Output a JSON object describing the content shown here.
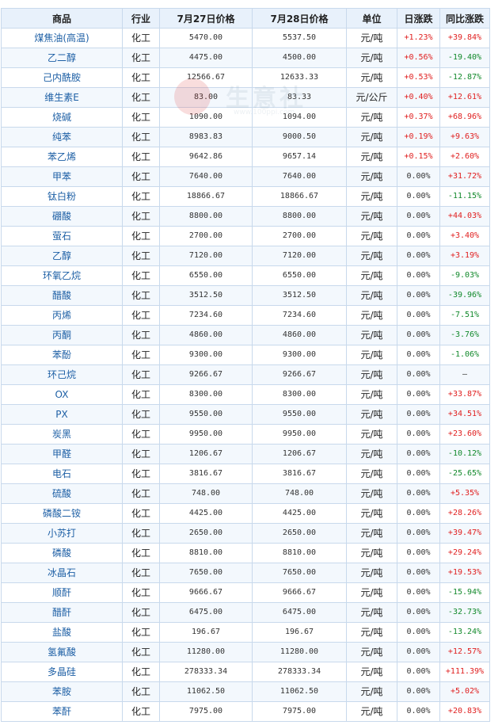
{
  "headers": [
    "商品",
    "行业",
    "7月27日价格",
    "7月28日价格",
    "单位",
    "日涨跌",
    "同比涨跌"
  ],
  "watermark": {
    "text": "生意社",
    "url": "www.100ppi.com"
  },
  "colors": {
    "up": "#e02020",
    "down": "#12892b",
    "link": "#1d5fa5",
    "header_bg": "#e8f1fb",
    "border": "#c8d9ec"
  },
  "rows": [
    {
      "name": "煤焦油(高温)",
      "industry": "化工",
      "p1": "5470.00",
      "p2": "5537.50",
      "unit": "元/吨",
      "day": "+1.23%",
      "day_dir": "up",
      "yoy": "+39.84%",
      "yoy_dir": "up"
    },
    {
      "name": "乙二醇",
      "industry": "化工",
      "p1": "4475.00",
      "p2": "4500.00",
      "unit": "元/吨",
      "day": "+0.56%",
      "day_dir": "up",
      "yoy": "-19.40%",
      "yoy_dir": "down"
    },
    {
      "name": "己内酰胺",
      "industry": "化工",
      "p1": "12566.67",
      "p2": "12633.33",
      "unit": "元/吨",
      "day": "+0.53%",
      "day_dir": "up",
      "yoy": "-12.87%",
      "yoy_dir": "down"
    },
    {
      "name": "维生素E",
      "industry": "化工",
      "p1": "83.00",
      "p2": "83.33",
      "unit": "元/公斤",
      "day": "+0.40%",
      "day_dir": "up",
      "yoy": "+12.61%",
      "yoy_dir": "up"
    },
    {
      "name": "烧碱",
      "industry": "化工",
      "p1": "1090.00",
      "p2": "1094.00",
      "unit": "元/吨",
      "day": "+0.37%",
      "day_dir": "up",
      "yoy": "+68.96%",
      "yoy_dir": "up"
    },
    {
      "name": "纯苯",
      "industry": "化工",
      "p1": "8983.83",
      "p2": "9000.50",
      "unit": "元/吨",
      "day": "+0.19%",
      "day_dir": "up",
      "yoy": "+9.63%",
      "yoy_dir": "up"
    },
    {
      "name": "苯乙烯",
      "industry": "化工",
      "p1": "9642.86",
      "p2": "9657.14",
      "unit": "元/吨",
      "day": "+0.15%",
      "day_dir": "up",
      "yoy": "+2.60%",
      "yoy_dir": "up"
    },
    {
      "name": "甲苯",
      "industry": "化工",
      "p1": "7640.00",
      "p2": "7640.00",
      "unit": "元/吨",
      "day": "0.00%",
      "day_dir": "flat",
      "yoy": "+31.72%",
      "yoy_dir": "up"
    },
    {
      "name": "钛白粉",
      "industry": "化工",
      "p1": "18866.67",
      "p2": "18866.67",
      "unit": "元/吨",
      "day": "0.00%",
      "day_dir": "flat",
      "yoy": "-11.15%",
      "yoy_dir": "down"
    },
    {
      "name": "硼酸",
      "industry": "化工",
      "p1": "8800.00",
      "p2": "8800.00",
      "unit": "元/吨",
      "day": "0.00%",
      "day_dir": "flat",
      "yoy": "+44.03%",
      "yoy_dir": "up"
    },
    {
      "name": "萤石",
      "industry": "化工",
      "p1": "2700.00",
      "p2": "2700.00",
      "unit": "元/吨",
      "day": "0.00%",
      "day_dir": "flat",
      "yoy": "+3.40%",
      "yoy_dir": "up"
    },
    {
      "name": "乙醇",
      "industry": "化工",
      "p1": "7120.00",
      "p2": "7120.00",
      "unit": "元/吨",
      "day": "0.00%",
      "day_dir": "flat",
      "yoy": "+3.19%",
      "yoy_dir": "up"
    },
    {
      "name": "环氧乙烷",
      "industry": "化工",
      "p1": "6550.00",
      "p2": "6550.00",
      "unit": "元/吨",
      "day": "0.00%",
      "day_dir": "flat",
      "yoy": "-9.03%",
      "yoy_dir": "down"
    },
    {
      "name": "醋酸",
      "industry": "化工",
      "p1": "3512.50",
      "p2": "3512.50",
      "unit": "元/吨",
      "day": "0.00%",
      "day_dir": "flat",
      "yoy": "-39.96%",
      "yoy_dir": "down"
    },
    {
      "name": "丙烯",
      "industry": "化工",
      "p1": "7234.60",
      "p2": "7234.60",
      "unit": "元/吨",
      "day": "0.00%",
      "day_dir": "flat",
      "yoy": "-7.51%",
      "yoy_dir": "down"
    },
    {
      "name": "丙酮",
      "industry": "化工",
      "p1": "4860.00",
      "p2": "4860.00",
      "unit": "元/吨",
      "day": "0.00%",
      "day_dir": "flat",
      "yoy": "-3.76%",
      "yoy_dir": "down"
    },
    {
      "name": "苯酚",
      "industry": "化工",
      "p1": "9300.00",
      "p2": "9300.00",
      "unit": "元/吨",
      "day": "0.00%",
      "day_dir": "flat",
      "yoy": "-1.06%",
      "yoy_dir": "down"
    },
    {
      "name": "环己烷",
      "industry": "化工",
      "p1": "9266.67",
      "p2": "9266.67",
      "unit": "元/吨",
      "day": "0.00%",
      "day_dir": "flat",
      "yoy": "—",
      "yoy_dir": "flat"
    },
    {
      "name": "OX",
      "industry": "化工",
      "p1": "8300.00",
      "p2": "8300.00",
      "unit": "元/吨",
      "day": "0.00%",
      "day_dir": "flat",
      "yoy": "+33.87%",
      "yoy_dir": "up"
    },
    {
      "name": "PX",
      "industry": "化工",
      "p1": "9550.00",
      "p2": "9550.00",
      "unit": "元/吨",
      "day": "0.00%",
      "day_dir": "flat",
      "yoy": "+34.51%",
      "yoy_dir": "up"
    },
    {
      "name": "炭黑",
      "industry": "化工",
      "p1": "9950.00",
      "p2": "9950.00",
      "unit": "元/吨",
      "day": "0.00%",
      "day_dir": "flat",
      "yoy": "+23.60%",
      "yoy_dir": "up"
    },
    {
      "name": "甲醛",
      "industry": "化工",
      "p1": "1206.67",
      "p2": "1206.67",
      "unit": "元/吨",
      "day": "0.00%",
      "day_dir": "flat",
      "yoy": "-10.12%",
      "yoy_dir": "down"
    },
    {
      "name": "电石",
      "industry": "化工",
      "p1": "3816.67",
      "p2": "3816.67",
      "unit": "元/吨",
      "day": "0.00%",
      "day_dir": "flat",
      "yoy": "-25.65%",
      "yoy_dir": "down"
    },
    {
      "name": "硫酸",
      "industry": "化工",
      "p1": "748.00",
      "p2": "748.00",
      "unit": "元/吨",
      "day": "0.00%",
      "day_dir": "flat",
      "yoy": "+5.35%",
      "yoy_dir": "up"
    },
    {
      "name": "磷酸二铵",
      "industry": "化工",
      "p1": "4425.00",
      "p2": "4425.00",
      "unit": "元/吨",
      "day": "0.00%",
      "day_dir": "flat",
      "yoy": "+28.26%",
      "yoy_dir": "up"
    },
    {
      "name": "小苏打",
      "industry": "化工",
      "p1": "2650.00",
      "p2": "2650.00",
      "unit": "元/吨",
      "day": "0.00%",
      "day_dir": "flat",
      "yoy": "+39.47%",
      "yoy_dir": "up"
    },
    {
      "name": "磷酸",
      "industry": "化工",
      "p1": "8810.00",
      "p2": "8810.00",
      "unit": "元/吨",
      "day": "0.00%",
      "day_dir": "flat",
      "yoy": "+29.24%",
      "yoy_dir": "up"
    },
    {
      "name": "冰晶石",
      "industry": "化工",
      "p1": "7650.00",
      "p2": "7650.00",
      "unit": "元/吨",
      "day": "0.00%",
      "day_dir": "flat",
      "yoy": "+19.53%",
      "yoy_dir": "up"
    },
    {
      "name": "顺酐",
      "industry": "化工",
      "p1": "9666.67",
      "p2": "9666.67",
      "unit": "元/吨",
      "day": "0.00%",
      "day_dir": "flat",
      "yoy": "-15.94%",
      "yoy_dir": "down"
    },
    {
      "name": "醋酐",
      "industry": "化工",
      "p1": "6475.00",
      "p2": "6475.00",
      "unit": "元/吨",
      "day": "0.00%",
      "day_dir": "flat",
      "yoy": "-32.73%",
      "yoy_dir": "down"
    },
    {
      "name": "盐酸",
      "industry": "化工",
      "p1": "196.67",
      "p2": "196.67",
      "unit": "元/吨",
      "day": "0.00%",
      "day_dir": "flat",
      "yoy": "-13.24%",
      "yoy_dir": "down"
    },
    {
      "name": "氢氟酸",
      "industry": "化工",
      "p1": "11280.00",
      "p2": "11280.00",
      "unit": "元/吨",
      "day": "0.00%",
      "day_dir": "flat",
      "yoy": "+12.57%",
      "yoy_dir": "up"
    },
    {
      "name": "多晶硅",
      "industry": "化工",
      "p1": "278333.34",
      "p2": "278333.34",
      "unit": "元/吨",
      "day": "0.00%",
      "day_dir": "flat",
      "yoy": "+111.39%",
      "yoy_dir": "up"
    },
    {
      "name": "苯胺",
      "industry": "化工",
      "p1": "11062.50",
      "p2": "11062.50",
      "unit": "元/吨",
      "day": "0.00%",
      "day_dir": "flat",
      "yoy": "+5.02%",
      "yoy_dir": "up"
    },
    {
      "name": "苯酐",
      "industry": "化工",
      "p1": "7975.00",
      "p2": "7975.00",
      "unit": "元/吨",
      "day": "0.00%",
      "day_dir": "flat",
      "yoy": "+20.83%",
      "yoy_dir": "up"
    }
  ]
}
